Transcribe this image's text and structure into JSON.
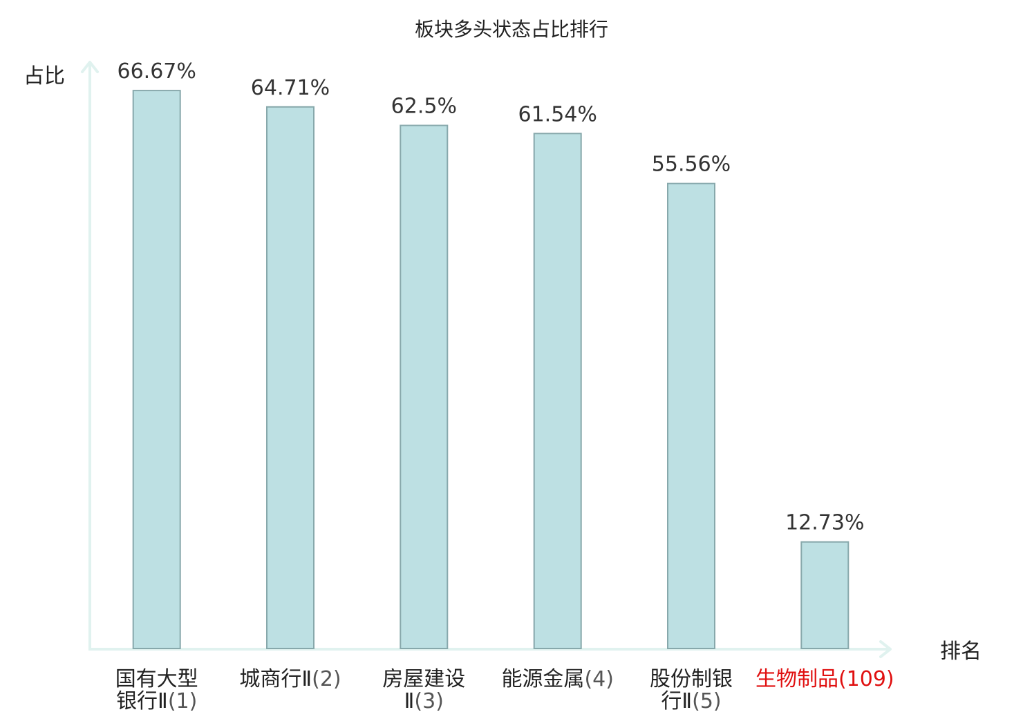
{
  "chart_data": {
    "type": "bar",
    "title": "板块多头状态占比排行",
    "xlabel": "排名",
    "ylabel": "占比",
    "ylim": [
      0,
      70
    ],
    "grid": false,
    "categories": [
      {
        "label": "国有大型银行Ⅱ",
        "rank": "(1)",
        "highlight": false
      },
      {
        "label": "城商行Ⅱ",
        "rank": "(2)",
        "highlight": false
      },
      {
        "label": "房屋建设Ⅱ",
        "rank": "(3)",
        "highlight": false
      },
      {
        "label": "能源金属",
        "rank": "(4)",
        "highlight": false
      },
      {
        "label": "股份制银行Ⅱ",
        "rank": "(5)",
        "highlight": false
      },
      {
        "label": "生物制品",
        "rank": "(109)",
        "highlight": true
      }
    ],
    "values": [
      66.67,
      64.71,
      62.5,
      61.54,
      55.56,
      12.73
    ],
    "value_labels": [
      "66.67%",
      "64.71%",
      "62.5%",
      "61.54%",
      "55.56%",
      "12.73%"
    ]
  },
  "colors": {
    "bar_fill": "#bde0e3",
    "bar_stroke": "#87a8ab",
    "axis": "#e0f2ef",
    "text": "#222222",
    "value_text": "#333333",
    "rank_text": "#555555",
    "highlight": "#e01010"
  }
}
